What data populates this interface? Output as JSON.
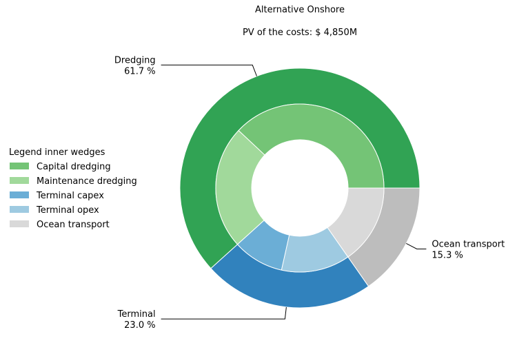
{
  "title": "Alternative Onshore",
  "subtitle": "PV of the costs: $ 4,850M",
  "chart_data": {
    "type": "donut",
    "outer_ring": [
      {
        "label": "Dredging",
        "percent": 61.7,
        "pct_label": "61.7 %",
        "color": "#31a354"
      },
      {
        "label": "Terminal",
        "percent": 23.0,
        "pct_label": "23.0 %",
        "color": "#3182bd"
      },
      {
        "label": "Ocean transport",
        "percent": 15.3,
        "pct_label": "15.3 %",
        "color": "#bdbdbd"
      }
    ],
    "inner_ring": [
      {
        "label": "Capital dredging",
        "percent": 38.0,
        "color": "#74c476"
      },
      {
        "label": "Maintenance dredging",
        "percent": 23.7,
        "color": "#a1d99b"
      },
      {
        "label": "Terminal capex",
        "percent": 9.8,
        "color": "#6baed6"
      },
      {
        "label": "Terminal opex",
        "percent": 13.2,
        "color": "#9ecae1"
      },
      {
        "label": "Ocean transport",
        "percent": 15.3,
        "color": "#d9d9d9"
      }
    ],
    "legend_title": "Legend inner wedges",
    "legend_placement": "left"
  }
}
